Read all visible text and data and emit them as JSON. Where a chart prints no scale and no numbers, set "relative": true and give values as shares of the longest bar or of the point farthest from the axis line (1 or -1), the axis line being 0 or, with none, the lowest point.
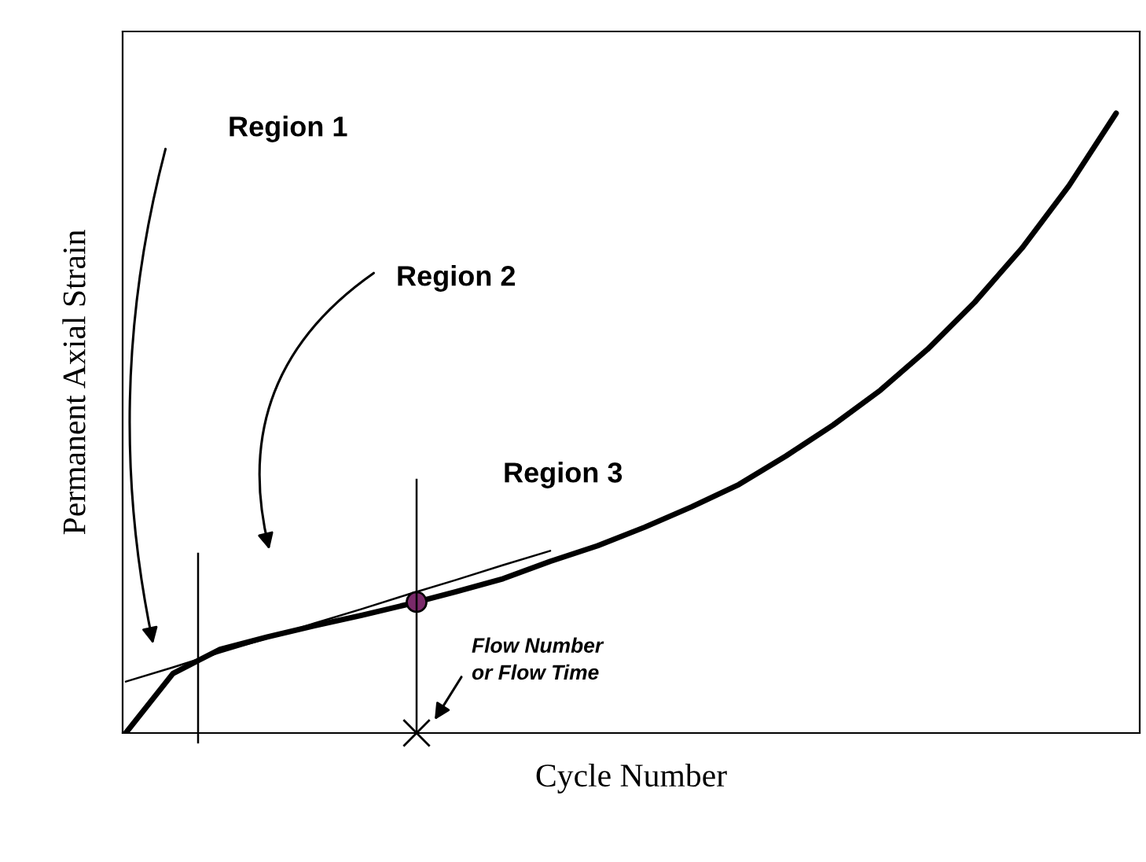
{
  "chart_data": {
    "type": "line",
    "relative": true,
    "xlabel": "Cycle Number",
    "ylabel": "Permanent Axial Strain",
    "categories": [
      null,
      null,
      null,
      null,
      null,
      null,
      null,
      null,
      null,
      null,
      null,
      null,
      null,
      null,
      null,
      null,
      null,
      null,
      null,
      null,
      null,
      null
    ],
    "series": [
      {
        "color": "#000000",
        "values": [
          0,
          0.096,
          0.135,
          0.155,
          0.173,
          0.19,
          0.208,
          0.228,
          0.249,
          0.277,
          0.302,
          0.332,
          0.365,
          0.401,
          0.447,
          0.497,
          0.553,
          0.619,
          0.695,
          0.782,
          0.883,
          1
        ]
      },
      {
        "color": "#000000",
        "line_style": "solid",
        "values": [
          0.083,
          0.106,
          0.13,
          0.153,
          0.177,
          0.2,
          0.224,
          0.247,
          0.271,
          0.294,
          null,
          null,
          null,
          null,
          null,
          null,
          null,
          null,
          null,
          null,
          null,
          null
        ]
      }
    ],
    "annotations": [
      "Region 1",
      "Region 2",
      "Region 3",
      "Flow Number\nor Flow Time"
    ],
    "legend": false
  }
}
